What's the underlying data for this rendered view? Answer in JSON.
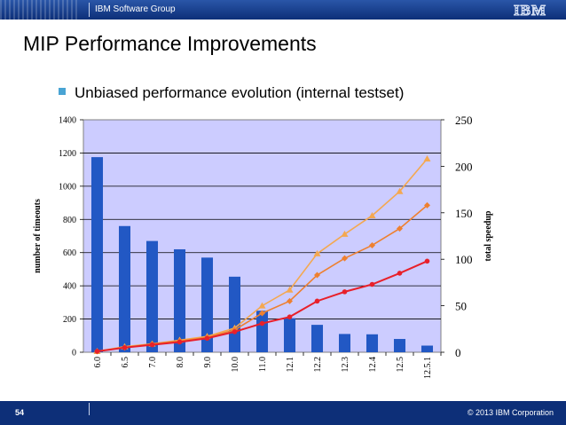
{
  "header": {
    "group": "IBM Software Group",
    "logo": "IBM"
  },
  "slide": {
    "title": "MIP Performance Improvements",
    "bullet": "Unbiased performance evolution (internal testset)",
    "page_number": "54",
    "copyright": "© 2013 IBM Corporation"
  },
  "colors": {
    "bars": "#2258c4",
    "plot_bg": "#ccccff",
    "line_red": "#e8202a",
    "line_orange": "#ee8030",
    "line_light": "#f4a850",
    "header": "#0d2f78"
  },
  "chart_data": {
    "type": "bar",
    "categories": [
      "6.0",
      "6.5",
      "7.0",
      "8.0",
      "9.0",
      "10.0",
      "11.0",
      "12.1",
      "12.2",
      "12.3",
      "12.4",
      "12.5",
      "12.5.1"
    ],
    "values": [
      1175,
      760,
      670,
      620,
      570,
      455,
      250,
      205,
      165,
      110,
      108,
      80,
      40
    ],
    "ylabel": "number of timeouts",
    "ylim": [
      0,
      1400
    ],
    "yticks": [
      0,
      200,
      400,
      600,
      800,
      1000,
      1200,
      1400
    ],
    "y2label": "total speedup",
    "y2lim": [
      0,
      250
    ],
    "y2ticks": [
      0,
      50,
      100,
      150,
      200,
      250
    ],
    "lines": [
      {
        "name": "speedup (red)",
        "values": [
          1,
          5,
          8,
          11,
          15,
          22,
          31,
          38,
          55,
          65,
          73,
          85,
          98
        ]
      },
      {
        "name": "speedup (orange)",
        "values": [
          1,
          5,
          9,
          12,
          16,
          24,
          42,
          55,
          83,
          101,
          115,
          133,
          158
        ]
      },
      {
        "name": "speedup (light orange)",
        "values": [
          1,
          6,
          9,
          13,
          17,
          26,
          50,
          67,
          106,
          127,
          147,
          173,
          208
        ]
      }
    ]
  }
}
